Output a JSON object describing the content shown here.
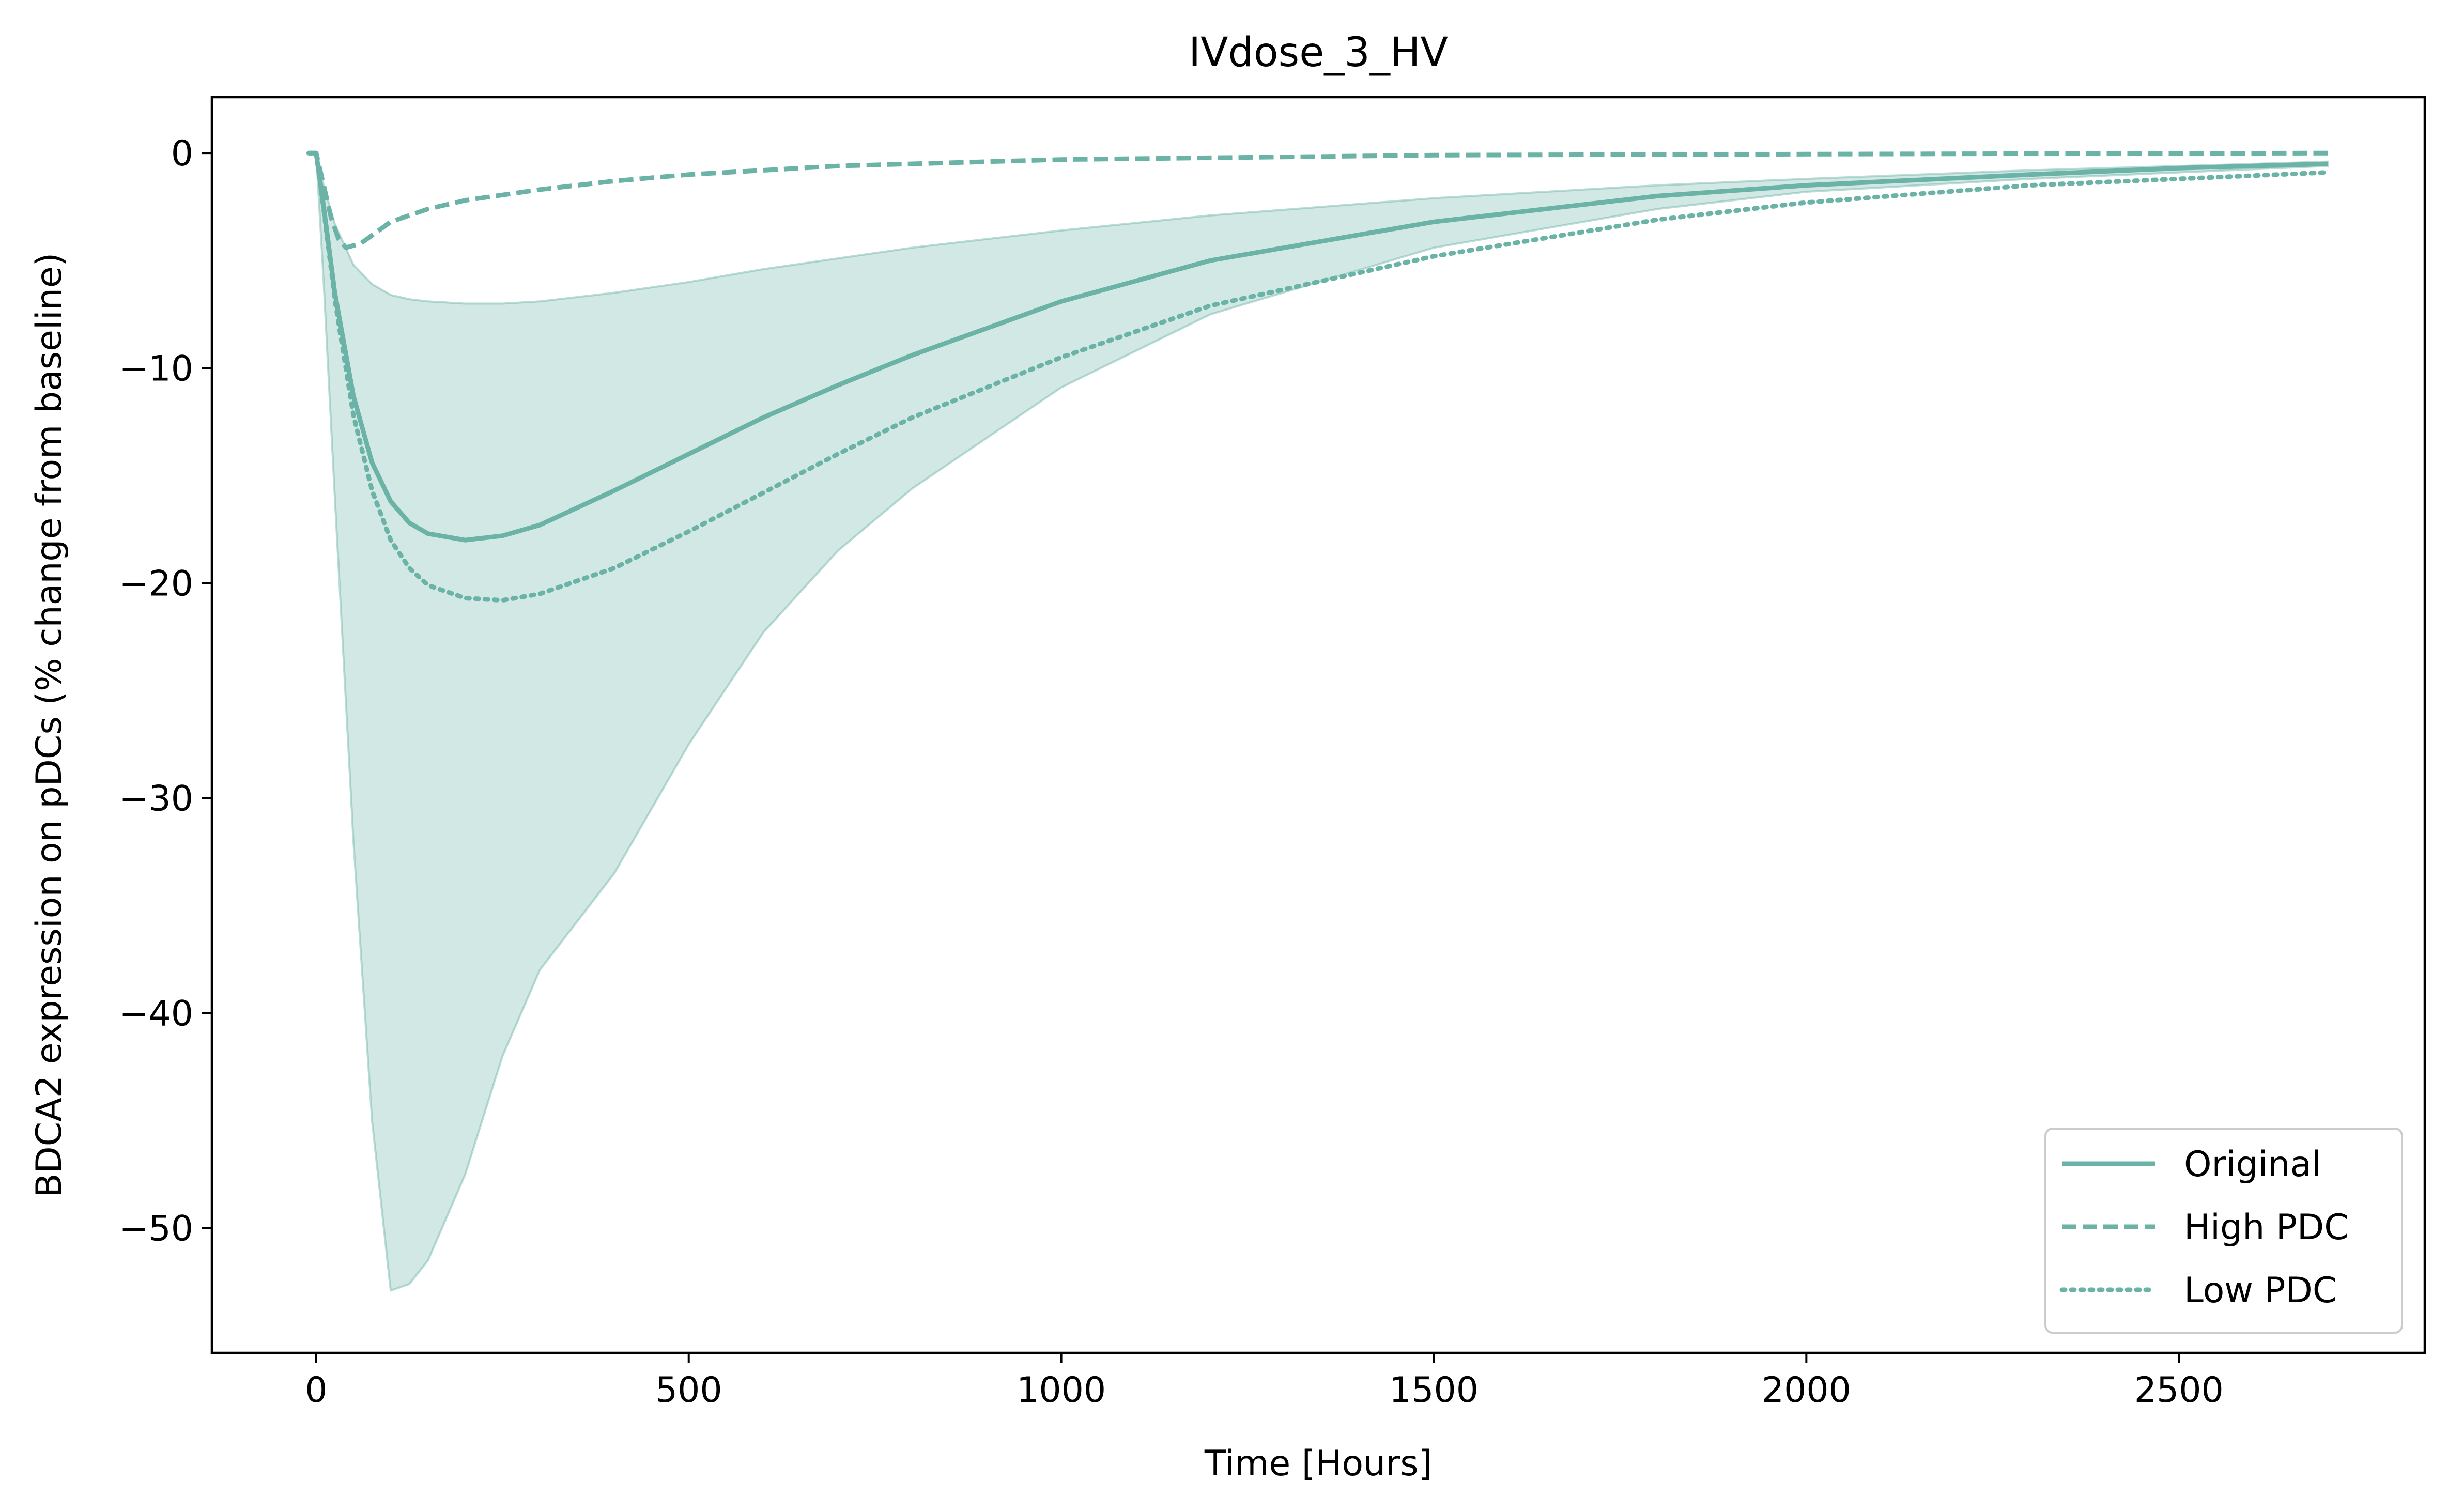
{
  "chart_data": {
    "type": "line",
    "title": "IVdose_3_HV",
    "xlabel": "Time [Hours]",
    "ylabel": "BDCA2 expression on pDCs (% change from baseline)",
    "xlim": [
      -140,
      2830
    ],
    "ylim": [
      -55.8,
      2.6
    ],
    "xticks": [
      0,
      500,
      1000,
      1500,
      2000,
      2500
    ],
    "xtick_labels": [
      "0",
      "500",
      "1000",
      "1500",
      "2000",
      "2500"
    ],
    "yticks": [
      0,
      -10,
      -20,
      -30,
      -40,
      -50
    ],
    "ytick_labels": [
      "0",
      "−10",
      "−20",
      "−30",
      "−40",
      "−50"
    ],
    "grid": false,
    "legend_position": "lower-right",
    "color": "#6ab3a6",
    "band": {
      "x": [
        -10,
        0,
        10,
        25,
        50,
        75,
        100,
        125,
        150,
        200,
        250,
        300,
        400,
        500,
        600,
        700,
        800,
        1000,
        1200,
        1500,
        1800,
        2000,
        2300,
        2500,
        2700
      ],
      "upper": [
        0,
        0,
        -1.5,
        -3.3,
        -5.2,
        -6.1,
        -6.6,
        -6.8,
        -6.9,
        -7.0,
        -7.0,
        -6.9,
        -6.5,
        -6.0,
        -5.4,
        -4.9,
        -4.4,
        -3.6,
        -2.9,
        -2.1,
        -1.5,
        -1.2,
        -0.8,
        -0.6,
        -0.4
      ],
      "lower": [
        0,
        0,
        -6,
        -16,
        -32,
        -45,
        -52.9,
        -52.6,
        -51.5,
        -47.5,
        -42,
        -38,
        -33.5,
        -27.5,
        -22.3,
        -18.5,
        -15.6,
        -10.9,
        -7.5,
        -4.4,
        -2.6,
        -1.8,
        -1.2,
        -0.9,
        -0.6
      ]
    },
    "series": [
      {
        "name": "Original",
        "style": "solid",
        "x": [
          -10,
          0,
          10,
          25,
          50,
          75,
          100,
          125,
          150,
          200,
          250,
          300,
          400,
          500,
          600,
          700,
          800,
          1000,
          1200,
          1500,
          1800,
          2000,
          2300,
          2500,
          2700
        ],
        "values": [
          0,
          0,
          -2.5,
          -6.5,
          -11.3,
          -14.4,
          -16.2,
          -17.2,
          -17.7,
          -18.0,
          -17.8,
          -17.3,
          -15.7,
          -14.0,
          -12.3,
          -10.8,
          -9.4,
          -6.9,
          -5.0,
          -3.2,
          -2.0,
          -1.5,
          -1.0,
          -0.7,
          -0.5
        ]
      },
      {
        "name": "High PDC",
        "style": "dashed",
        "x": [
          -10,
          0,
          10,
          20,
          30,
          40,
          60,
          80,
          100,
          150,
          200,
          300,
          400,
          500,
          700,
          1000,
          1500,
          2000,
          2700
        ],
        "values": [
          0,
          0,
          -1.5,
          -3.0,
          -4.0,
          -4.4,
          -4.2,
          -3.7,
          -3.2,
          -2.6,
          -2.2,
          -1.7,
          -1.3,
          -1.0,
          -0.6,
          -0.3,
          -0.1,
          -0.05,
          0
        ]
      },
      {
        "name": "Low PDC",
        "style": "dotted",
        "x": [
          -10,
          0,
          10,
          25,
          50,
          75,
          100,
          125,
          150,
          200,
          250,
          300,
          400,
          500,
          600,
          700,
          800,
          1000,
          1200,
          1500,
          1800,
          2000,
          2300,
          2500,
          2700
        ],
        "values": [
          0,
          0,
          -2.6,
          -6.8,
          -12.2,
          -15.7,
          -18.0,
          -19.3,
          -20.1,
          -20.7,
          -20.8,
          -20.5,
          -19.3,
          -17.6,
          -15.8,
          -14.0,
          -12.3,
          -9.5,
          -7.1,
          -4.8,
          -3.1,
          -2.3,
          -1.5,
          -1.2,
          -0.9
        ]
      }
    ]
  }
}
